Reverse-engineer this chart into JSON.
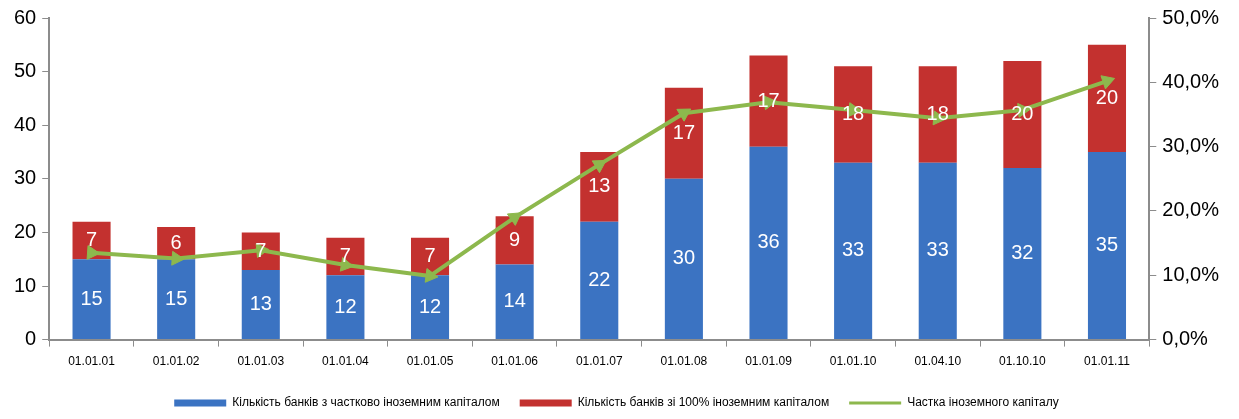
{
  "chart_data": {
    "type": "bar",
    "stacked": true,
    "categories": [
      "01.01.01",
      "01.01.02",
      "01.01.03",
      "01.01.04",
      "01.01.05",
      "01.01.06",
      "01.01.07",
      "01.01.08",
      "01.01.09",
      "01.01.10",
      "01.04.10",
      "01.10.10",
      "01.01.11"
    ],
    "series": [
      {
        "name": "Кількість банків з частково іноземним капіталом",
        "color": "#3b73c2",
        "values": [
          15,
          15,
          13,
          12,
          12,
          14,
          22,
          30,
          36,
          33,
          33,
          32,
          35
        ],
        "value_labels": [
          "15",
          "15",
          "13",
          "12",
          "12",
          "14",
          "22",
          "30",
          "36",
          "33",
          "33",
          "32",
          "35"
        ]
      },
      {
        "name": "Кількість банків зі 100% іноземним капіталом",
        "color": "#c3312f",
        "values": [
          7,
          6,
          7,
          7,
          7,
          9,
          13,
          17,
          17,
          18,
          18,
          20,
          20
        ],
        "value_labels": [
          "7",
          "6",
          "7",
          "7",
          "7",
          "9",
          "13",
          "17",
          "17",
          "18",
          "18",
          "20",
          "20"
        ]
      },
      {
        "name": "Частка іноземного капіталу",
        "type": "line",
        "axis": "y2",
        "color": "#8db84d",
        "values": [
          13.5,
          12.6,
          13.9,
          11.6,
          9.9,
          19.0,
          27.2,
          35.2,
          36.9,
          35.7,
          34.4,
          35.7,
          40.2
        ]
      }
    ],
    "ylim": [
      0,
      60
    ],
    "yticks": [
      0,
      10,
      20,
      30,
      40,
      50,
      60
    ],
    "y2lim": [
      0,
      50
    ],
    "y2ticks": [
      {
        "value": 0,
        "label": "0,0%"
      },
      {
        "value": 10,
        "label": "10,0%"
      },
      {
        "value": 20,
        "label": "20,0%"
      },
      {
        "value": 30,
        "label": "30,0%"
      },
      {
        "value": 40,
        "label": "40,0%"
      },
      {
        "value": 50,
        "label": "50,0%"
      }
    ],
    "grid": false,
    "legend": "bottom",
    "marker": "triangle"
  }
}
